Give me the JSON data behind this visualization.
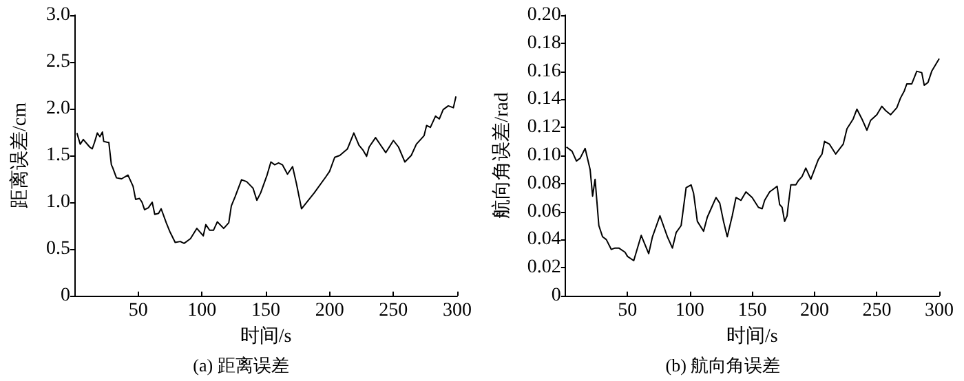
{
  "chart_data": [
    {
      "type": "line",
      "title": "(a) 距离误差",
      "xlabel": "时间/s",
      "ylabel": "距离误差/cm",
      "color": "#000000",
      "marker": "none",
      "x": [
        2,
        4.6,
        7,
        12,
        14,
        15.8,
        18,
        20,
        22,
        23,
        26,
        27,
        29,
        30,
        33,
        37,
        42,
        46,
        48,
        51,
        53,
        55,
        58,
        61,
        63,
        66,
        68,
        72,
        75,
        79,
        83,
        86,
        91,
        96,
        101,
        103,
        106,
        109,
        112,
        117,
        121,
        123,
        126,
        131,
        135,
        140,
        143,
        146,
        151,
        154,
        157,
        160,
        163,
        167,
        171,
        174,
        178,
        188,
        197,
        200,
        204,
        208,
        214,
        219,
        223,
        226,
        229,
        231,
        236,
        240,
        244,
        250,
        254,
        259,
        264,
        268,
        274,
        276,
        279,
        283,
        286,
        289,
        293,
        297,
        299
      ],
      "values": [
        1.74,
        1.62,
        1.67,
        1.59,
        1.57,
        1.64,
        1.74,
        1.7,
        1.75,
        1.65,
        1.64,
        1.64,
        1.4,
        1.37,
        1.26,
        1.25,
        1.29,
        1.17,
        1.03,
        1.04,
        1.0,
        0.92,
        0.94,
        1.0,
        0.87,
        0.88,
        0.93,
        0.78,
        0.68,
        0.57,
        0.58,
        0.56,
        0.61,
        0.72,
        0.64,
        0.76,
        0.7,
        0.7,
        0.79,
        0.72,
        0.78,
        0.96,
        1.06,
        1.24,
        1.22,
        1.15,
        1.02,
        1.1,
        1.29,
        1.43,
        1.4,
        1.42,
        1.4,
        1.3,
        1.38,
        1.2,
        0.93,
        1.1,
        1.27,
        1.33,
        1.48,
        1.5,
        1.57,
        1.74,
        1.61,
        1.56,
        1.49,
        1.59,
        1.69,
        1.61,
        1.53,
        1.66,
        1.59,
        1.43,
        1.5,
        1.62,
        1.71,
        1.82,
        1.8,
        1.92,
        1.89,
        1.99,
        2.03,
        2.01,
        2.13
      ],
      "xlim": [
        0,
        300
      ],
      "xticks": [
        50,
        100,
        150,
        200,
        250,
        300
      ],
      "ylim": [
        0,
        3
      ],
      "yticks": [
        0,
        0.5,
        {
          "value": 1,
          "label": "1.0"
        },
        1.5,
        {
          "value": 2,
          "label": "2.0"
        },
        2.5,
        {
          "value": 3,
          "label": "3.0"
        }
      ]
    },
    {
      "type": "line",
      "title": "(b) 航向角误差",
      "xlabel": "时间/s",
      "ylabel": "航向角误差/rad",
      "color": "#000000",
      "marker": "none",
      "x": [
        1,
        5.5,
        9,
        12,
        16,
        20,
        22,
        24,
        27,
        30,
        33,
        37,
        40,
        43,
        48,
        50,
        55,
        61,
        67,
        70,
        76,
        82,
        86,
        89,
        93,
        97,
        101,
        103,
        106,
        111,
        114,
        117,
        121,
        124,
        127,
        130,
        134,
        137,
        141,
        145,
        150,
        155,
        158,
        160,
        164,
        167,
        170,
        172,
        174,
        176,
        178,
        179,
        181,
        185,
        187,
        190,
        193,
        197,
        203,
        206,
        208,
        212,
        217,
        223,
        226,
        231,
        234,
        238,
        242,
        245,
        250,
        254,
        257,
        261,
        266,
        269,
        272,
        274,
        278,
        282,
        286,
        288,
        291,
        294,
        300
      ],
      "values": [
        0.106,
        0.103,
        0.096,
        0.098,
        0.105,
        0.09,
        0.071,
        0.083,
        0.05,
        0.042,
        0.04,
        0.033,
        0.034,
        0.034,
        0.031,
        0.028,
        0.025,
        0.043,
        0.03,
        0.042,
        0.057,
        0.042,
        0.034,
        0.045,
        0.05,
        0.077,
        0.079,
        0.073,
        0.053,
        0.046,
        0.056,
        0.062,
        0.07,
        0.066,
        0.053,
        0.042,
        0.057,
        0.07,
        0.068,
        0.074,
        0.07,
        0.063,
        0.062,
        0.068,
        0.074,
        0.076,
        0.078,
        0.065,
        0.063,
        0.053,
        0.057,
        0.065,
        0.079,
        0.079,
        0.082,
        0.085,
        0.091,
        0.083,
        0.097,
        0.101,
        0.11,
        0.108,
        0.101,
        0.108,
        0.119,
        0.126,
        0.133,
        0.126,
        0.118,
        0.125,
        0.129,
        0.135,
        0.132,
        0.129,
        0.134,
        0.141,
        0.146,
        0.151,
        0.151,
        0.16,
        0.159,
        0.15,
        0.152,
        0.16,
        0.169
      ],
      "xlim": [
        0,
        300
      ],
      "xticks": [
        50,
        100,
        150,
        200,
        250,
        300
      ],
      "ylim": [
        0,
        0.2
      ],
      "yticks": [
        0,
        0.02,
        0.04,
        0.06,
        0.08,
        {
          "value": 0.1,
          "label": "0.10"
        },
        0.12,
        0.14,
        0.16,
        0.18,
        {
          "value": 0.2,
          "label": "0.20"
        }
      ]
    }
  ]
}
